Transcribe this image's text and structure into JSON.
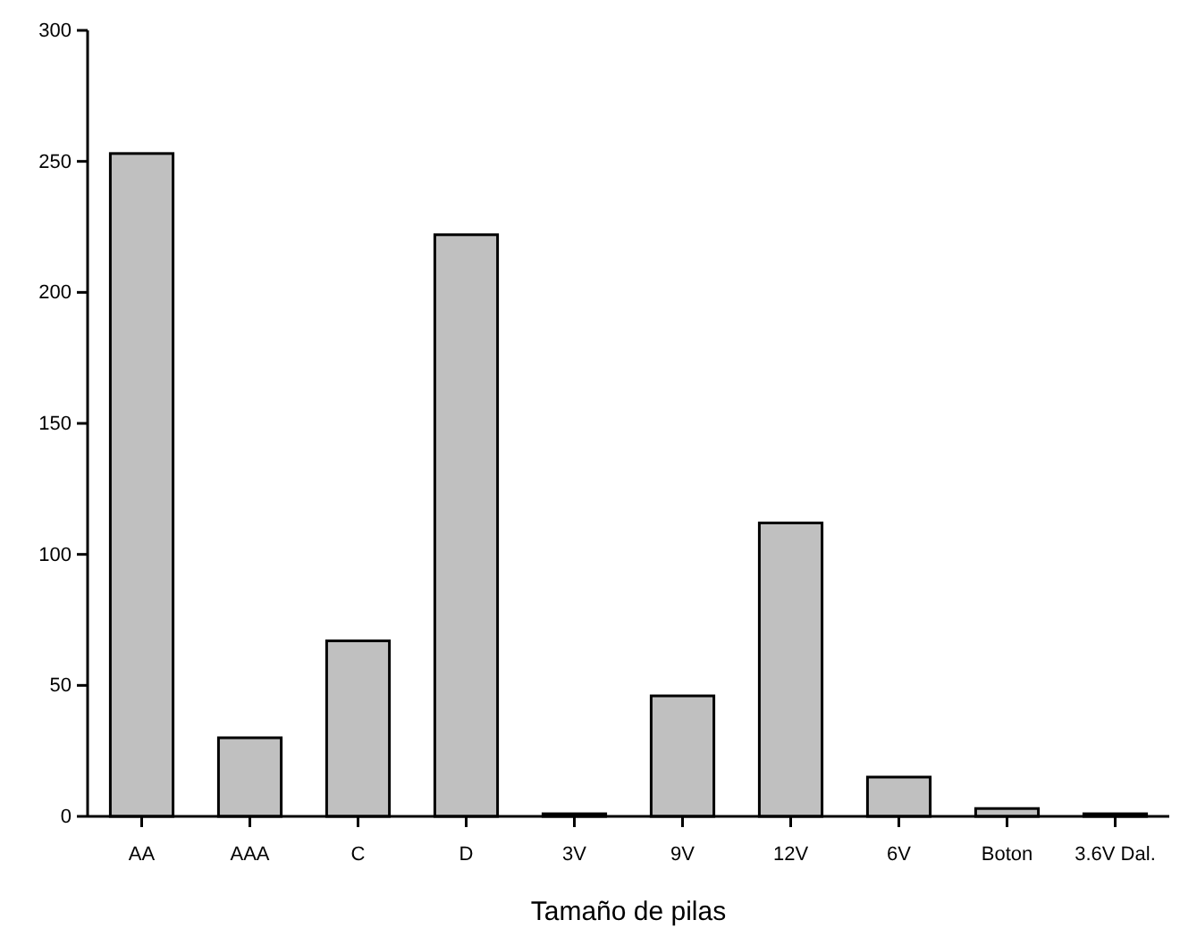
{
  "chart_data": {
    "type": "bar",
    "xlabel": "Tamaño de pilas",
    "categories": [
      "AA",
      "AAA",
      "C",
      "D",
      "3V",
      "9V",
      "12V",
      "6V",
      "Boton",
      "3.6V Dal."
    ],
    "values": [
      253,
      30,
      67,
      222,
      1,
      46,
      112,
      15,
      3,
      1
    ],
    "color": "#c0c0c0",
    "ylim": [
      0,
      300
    ],
    "yticks": [
      0,
      50,
      100,
      150,
      200,
      250,
      300
    ],
    "grid": false
  }
}
